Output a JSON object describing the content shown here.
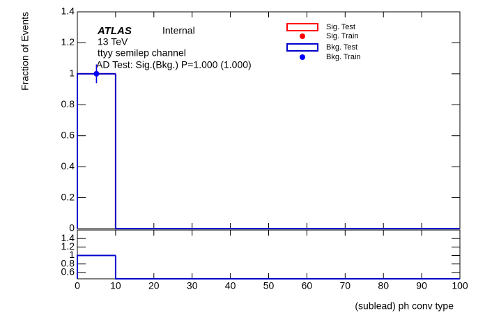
{
  "chart_data": [
    {
      "type": "histogram",
      "y_label": "Fraction of Events",
      "annotations": [
        "ATLAS",
        "Internal",
        "13 TeV",
        "ttyy semilep channel",
        "AD Test: Sig.(Bkg.) P=1.000 (1.000)"
      ],
      "bins": [
        0,
        10,
        20,
        30,
        40,
        50,
        60,
        70,
        80,
        90,
        100
      ],
      "series": [
        {
          "name": "Sig. Test",
          "color": "#ff0000",
          "values": [
            1,
            0,
            0,
            0,
            0,
            0,
            0,
            0,
            0,
            0
          ]
        },
        {
          "name": "Bkg. Test",
          "color": "#0000cc",
          "values": [
            1,
            0,
            0,
            0,
            0,
            0,
            0,
            0,
            0,
            0
          ]
        }
      ],
      "points": [
        {
          "name": "Sig. Train",
          "color": "#ff0000",
          "x": [
            5
          ],
          "values": [
            1
          ],
          "errors": [
            0.06
          ]
        },
        {
          "name": "Bkg. Train",
          "color": "#0000ff",
          "x": [
            5
          ],
          "values": [
            1
          ],
          "errors": [
            0.06
          ]
        }
      ],
      "xlim": [
        0,
        100
      ],
      "ylim": [
        0,
        1.4
      ],
      "yticks": [
        0,
        0.2,
        0.4,
        0.6,
        0.8,
        1,
        1.2,
        1.4
      ]
    },
    {
      "type": "histogram",
      "x_label": "(sublead) ph conv type",
      "bins": [
        0,
        10,
        20,
        30,
        40,
        50,
        60,
        70,
        80,
        90,
        100
      ],
      "series": [
        {
          "color": "#0000cc",
          "values": [
            1,
            0,
            0,
            0,
            0,
            0,
            0,
            0,
            0,
            0
          ]
        }
      ],
      "xlim": [
        0,
        100
      ],
      "xticks": [
        0,
        10,
        20,
        30,
        40,
        50,
        60,
        70,
        80,
        90,
        100
      ],
      "ylim": [
        0.45,
        1.6
      ],
      "yticks": [
        0.6,
        0.8,
        1,
        1.2,
        1.4
      ]
    }
  ]
}
